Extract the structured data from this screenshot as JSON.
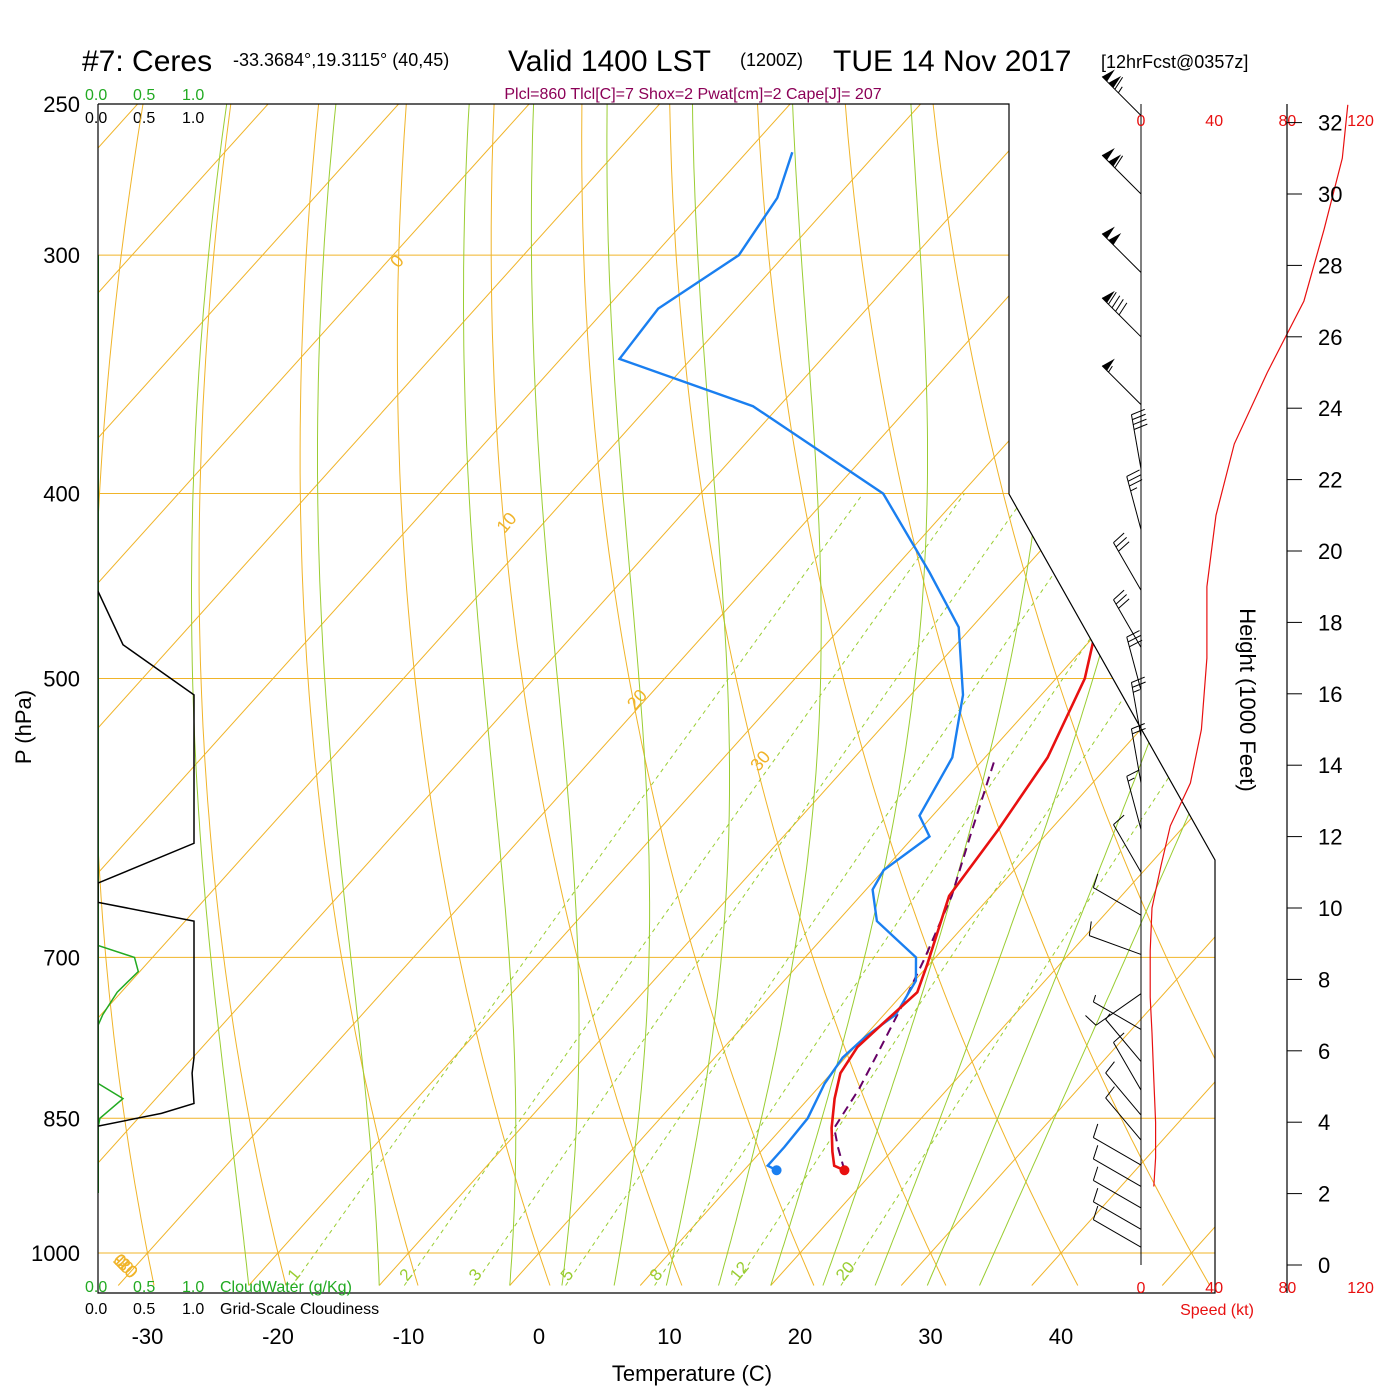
{
  "header": {
    "station": "#7: Ceres",
    "coords": "-33.3684°,19.3115° (40,45)",
    "valid": "Valid 1400 LST",
    "zulu": "(1200Z)",
    "date": "TUE 14 Nov 2017",
    "forecast": "[12hrFcst@0357z]",
    "indices": "Plcl=860 Tlcl[C]=7 Shox=2 Pwat[cm]=2 Cape[J]= 207"
  },
  "colors": {
    "isotherm": "#f0b429",
    "dry_adiabat": "#f0b429",
    "moist_adiabat": "#9acd32",
    "mixing_ratio": "#9acd32",
    "temperature": "#e81010",
    "dewpoint": "#1a7ff0",
    "parcel": "#660066",
    "cloud_water": "#22aa22",
    "cloudiness": "#000000",
    "speed": "#e81010",
    "indices": "#8b0057"
  },
  "labels": {
    "cloud_water_scale": [
      "0.0",
      "0.5",
      "1.0"
    ],
    "cloudiness_scale": [
      "0.0",
      "0.5",
      "1.0"
    ],
    "cloud_water_title": "CloudWater (g/Kg)",
    "cloudiness_title": "Grid-Scale Cloudiness",
    "speed_title": "Speed (kt)",
    "height_title": "Height (1000 Feet)"
  },
  "chart_data": {
    "type": "skew-t",
    "xlabel": "Temperature (C)",
    "ylabel": "P (hPa)",
    "x_ticks": [
      "-30",
      "-20",
      "-10",
      "0",
      "10",
      "20",
      "30",
      "40"
    ],
    "x_tick_values": [
      -30,
      -20,
      -10,
      0,
      10,
      20,
      30,
      40
    ],
    "pressure_ticks": [
      "250",
      "300",
      "400",
      "500",
      "700",
      "850",
      "1000"
    ],
    "pressure_tick_values": [
      250,
      300,
      400,
      500,
      700,
      850,
      1000
    ],
    "pressure_range": [
      250,
      1040
    ],
    "isotherm_labels": [
      "10",
      "0",
      "-10",
      "-20",
      "-30"
    ],
    "isotherm_label_values": [
      10,
      0,
      -10,
      -20,
      -30
    ],
    "dry_adiabat_labels": [
      "0",
      "10",
      "20",
      "30"
    ],
    "dry_adiabat_label_values": [
      0,
      10,
      20,
      30
    ],
    "mixing_ratio_labels": [
      "1",
      "2",
      "3",
      "5",
      "8",
      "12",
      "20"
    ],
    "mixing_ratio_values": [
      1,
      2,
      3,
      5,
      8,
      12,
      20
    ],
    "temperature": [
      {
        "p": 905,
        "t": 17.7
      },
      {
        "p": 900,
        "t": 16.6
      },
      {
        "p": 885,
        "t": 15.5
      },
      {
        "p": 860,
        "t": 13.8
      },
      {
        "p": 830,
        "t": 12.0
      },
      {
        "p": 805,
        "t": 10.7
      },
      {
        "p": 780,
        "t": 10.2
      },
      {
        "p": 760,
        "t": 10.5
      },
      {
        "p": 730,
        "t": 11.0
      },
      {
        "p": 705,
        "t": 9.8
      },
      {
        "p": 650,
        "t": 6.8
      },
      {
        "p": 600,
        "t": 6.0
      },
      {
        "p": 550,
        "t": 4.8
      },
      {
        "p": 500,
        "t": 2.2
      },
      {
        "p": 450,
        "t": -2.3
      },
      {
        "p": 400,
        "t": -9.5
      },
      {
        "p": 360,
        "t": -15.2
      },
      {
        "p": 320,
        "t": -21.0
      },
      {
        "p": 285,
        "t": -27.8
      },
      {
        "p": 265,
        "t": -32.0
      }
    ],
    "dewpoint": [
      {
        "p": 905,
        "t": 12.5
      },
      {
        "p": 900,
        "t": 11.5
      },
      {
        "p": 880,
        "t": 11.5
      },
      {
        "p": 850,
        "t": 11.3
      },
      {
        "p": 815,
        "t": 10.2
      },
      {
        "p": 790,
        "t": 9.8
      },
      {
        "p": 770,
        "t": 10.1
      },
      {
        "p": 750,
        "t": 10.9
      },
      {
        "p": 720,
        "t": 10.1
      },
      {
        "p": 700,
        "t": 8.5
      },
      {
        "p": 670,
        "t": 3.0
      },
      {
        "p": 645,
        "t": 0.5
      },
      {
        "p": 630,
        "t": 0.0
      },
      {
        "p": 605,
        "t": 1.2
      },
      {
        "p": 590,
        "t": -1.0
      },
      {
        "p": 550,
        "t": -2.5
      },
      {
        "p": 510,
        "t": -6.0
      },
      {
        "p": 470,
        "t": -11.0
      },
      {
        "p": 440,
        "t": -17.0
      },
      {
        "p": 400,
        "t": -26.0
      },
      {
        "p": 360,
        "t": -42.0
      },
      {
        "p": 340,
        "t": -55.5
      },
      {
        "p": 320,
        "t": -56.0
      },
      {
        "p": 300,
        "t": -53.5
      },
      {
        "p": 280,
        "t": -54.5
      },
      {
        "p": 265,
        "t": -56.5
      }
    ],
    "parcel": [
      {
        "p": 905,
        "t": 17.7
      },
      {
        "p": 880,
        "t": 15.6
      },
      {
        "p": 860,
        "t": 14.0
      },
      {
        "p": 820,
        "t": 13.2
      },
      {
        "p": 780,
        "t": 12.0
      },
      {
        "p": 740,
        "t": 10.7
      },
      {
        "p": 700,
        "t": 9.2
      },
      {
        "p": 650,
        "t": 7.0
      },
      {
        "p": 600,
        "t": 4.0
      },
      {
        "p": 550,
        "t": 0.8
      }
    ],
    "surface_temperature": 17.7,
    "surface_dewpoint": 12.5,
    "surface_pressure": 905,
    "cloud_water": [
      {
        "p": 690,
        "v": 0.0
      },
      {
        "p": 700,
        "v": 0.38
      },
      {
        "p": 712,
        "v": 0.42
      },
      {
        "p": 730,
        "v": 0.2
      },
      {
        "p": 750,
        "v": 0.05
      },
      {
        "p": 760,
        "v": 0.0
      },
      {
        "p": 790,
        "v": 0.0
      },
      {
        "p": 815,
        "v": 0.0
      },
      {
        "p": 830,
        "v": 0.26
      },
      {
        "p": 850,
        "v": 0.02
      },
      {
        "p": 860,
        "v": 0.0
      }
    ],
    "cloudiness": [
      {
        "p": 450,
        "v": 0.0
      },
      {
        "p": 480,
        "v": 0.26
      },
      {
        "p": 510,
        "v": 1.0
      },
      {
        "p": 610,
        "v": 1.0
      },
      {
        "p": 640,
        "v": 0.0
      },
      {
        "p": 655,
        "v": 0.0
      },
      {
        "p": 670,
        "v": 1.0
      },
      {
        "p": 790,
        "v": 1.0
      },
      {
        "p": 805,
        "v": 0.98
      },
      {
        "p": 835,
        "v": 1.0
      },
      {
        "p": 845,
        "v": 0.66
      },
      {
        "p": 858,
        "v": 0.0
      }
    ],
    "wind_speed_profile": [
      {
        "h": 2.2,
        "s": 7
      },
      {
        "h": 3.0,
        "s": 8
      },
      {
        "h": 4.0,
        "s": 8
      },
      {
        "h": 5.2,
        "s": 7
      },
      {
        "h": 6.5,
        "s": 6
      },
      {
        "h": 7.5,
        "s": 5
      },
      {
        "h": 8.8,
        "s": 5
      },
      {
        "h": 10.0,
        "s": 6
      },
      {
        "h": 11.2,
        "s": 11
      },
      {
        "h": 12.3,
        "s": 16
      },
      {
        "h": 13.5,
        "s": 27
      },
      {
        "h": 15.0,
        "s": 33
      },
      {
        "h": 17.0,
        "s": 36
      },
      {
        "h": 19.0,
        "s": 36
      },
      {
        "h": 21.0,
        "s": 41
      },
      {
        "h": 23.0,
        "s": 51
      },
      {
        "h": 25.0,
        "s": 69
      },
      {
        "h": 27.0,
        "s": 89
      },
      {
        "h": 29.0,
        "s": 100
      },
      {
        "h": 31.0,
        "s": 110
      },
      {
        "h": 32.5,
        "s": 113
      }
    ],
    "wind_barbs": [
      {
        "h": 32.2,
        "dir": 315,
        "spd": 115
      },
      {
        "h": 30.0,
        "dir": 315,
        "spd": 110
      },
      {
        "h": 27.8,
        "dir": 315,
        "spd": 100
      },
      {
        "h": 26.0,
        "dir": 315,
        "spd": 90
      },
      {
        "h": 24.1,
        "dir": 315,
        "spd": 55
      },
      {
        "h": 22.3,
        "dir": 350,
        "spd": 40
      },
      {
        "h": 20.6,
        "dir": 345,
        "spd": 35
      },
      {
        "h": 18.9,
        "dir": 330,
        "spd": 30
      },
      {
        "h": 17.3,
        "dir": 330,
        "spd": 30
      },
      {
        "h": 16.1,
        "dir": 345,
        "spd": 30
      },
      {
        "h": 14.8,
        "dir": 350,
        "spd": 25
      },
      {
        "h": 13.5,
        "dir": 350,
        "spd": 20
      },
      {
        "h": 12.2,
        "dir": 345,
        "spd": 15
      },
      {
        "h": 11.0,
        "dir": 330,
        "spd": 10
      },
      {
        "h": 9.8,
        "dir": 300,
        "spd": 10
      },
      {
        "h": 8.7,
        "dir": 290,
        "spd": 10
      },
      {
        "h": 7.6,
        "dir": 235,
        "spd": 10
      },
      {
        "h": 6.6,
        "dir": 300,
        "spd": 8
      },
      {
        "h": 5.7,
        "dir": 320,
        "spd": 8
      },
      {
        "h": 4.9,
        "dir": 330,
        "spd": 10
      },
      {
        "h": 4.2,
        "dir": 320,
        "spd": 10
      },
      {
        "h": 3.5,
        "dir": 320,
        "spd": 10
      },
      {
        "h": 2.8,
        "dir": 300,
        "spd": 10
      },
      {
        "h": 2.2,
        "dir": 300,
        "spd": 10
      },
      {
        "h": 1.6,
        "dir": 300,
        "spd": 10
      },
      {
        "h": 1.0,
        "dir": 300,
        "spd": 10
      },
      {
        "h": 0.5,
        "dir": 300,
        "spd": 10
      }
    ],
    "height_ticks": [
      "0",
      "2",
      "4",
      "6",
      "8",
      "10",
      "12",
      "14",
      "16",
      "18",
      "20",
      "22",
      "24",
      "26",
      "28",
      "30",
      "32"
    ],
    "height_tick_values": [
      0,
      2,
      4,
      6,
      8,
      10,
      12,
      14,
      16,
      18,
      20,
      22,
      24,
      26,
      28,
      30,
      32
    ],
    "speed_ticks": [
      "0",
      "40",
      "80",
      "120"
    ],
    "speed_tick_values": [
      0,
      40,
      80,
      120
    ]
  }
}
